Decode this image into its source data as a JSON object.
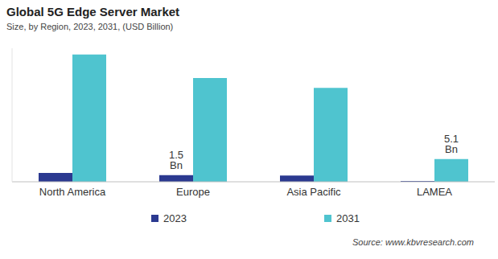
{
  "chart_data": {
    "type": "bar",
    "title": "Global 5G Edge Server Market",
    "subtitle": "Size, by Region, 2023, 2031, (USD Billion)",
    "categories": [
      "North America",
      "Europe",
      "Asia Pacific",
      "LAMEA"
    ],
    "series": [
      {
        "name": "2023",
        "color": "#2b3990",
        "values": [
          2.0,
          1.5,
          1.4,
          0.2
        ],
        "value_labels": [
          null,
          "1.5 Bn",
          null,
          null
        ]
      },
      {
        "name": "2031",
        "color": "#4fc4cf",
        "values": [
          28.6,
          23.3,
          21.1,
          5.1
        ],
        "value_labels": [
          null,
          null,
          null,
          "5.1 Bn"
        ]
      }
    ],
    "ylim": [
      0,
      30
    ],
    "tick_labels": "x",
    "legend": "bottom",
    "source": "Source: www.kbvresearch.com"
  }
}
